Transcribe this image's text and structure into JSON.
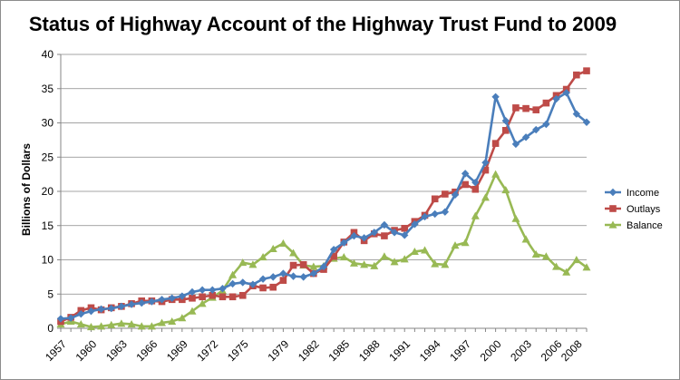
{
  "chart_data": {
    "type": "line",
    "title": "Status of Highway Account of the Highway Trust Fund to 2009",
    "xlabel": "",
    "ylabel": "Billions of Dollars",
    "ylim": [
      0,
      40
    ],
    "yticks": [
      0,
      5,
      10,
      15,
      20,
      25,
      30,
      35,
      40
    ],
    "xlim": [
      1957,
      2009
    ],
    "xtick_labels": [
      "1957",
      "1960",
      "1963",
      "1966",
      "1969",
      "1972",
      "1975",
      "1979",
      "1982",
      "1985",
      "1988",
      "1991",
      "1994",
      "1997",
      "2000",
      "2003",
      "2006",
      "2008"
    ],
    "grid": {
      "horizontal": true,
      "vertical": false
    },
    "legend": "right",
    "x": [
      1957,
      1958,
      1959,
      1960,
      1961,
      1962,
      1963,
      1964,
      1965,
      1966,
      1967,
      1968,
      1969,
      1970,
      1971,
      1972,
      1973,
      1974,
      1975,
      1976,
      1977,
      1978,
      1979,
      1980,
      1981,
      1982,
      1983,
      1984,
      1985,
      1986,
      1987,
      1988,
      1989,
      1990,
      1991,
      1992,
      1993,
      1994,
      1995,
      1996,
      1997,
      1998,
      1999,
      2000,
      2001,
      2002,
      2003,
      2004,
      2005,
      2006,
      2007,
      2008,
      2009
    ],
    "series": [
      {
        "name": "Income",
        "color": "#4a7ebb",
        "marker": "diamond",
        "values": [
          1.4,
          1.5,
          2.1,
          2.5,
          2.8,
          2.9,
          3.2,
          3.5,
          3.7,
          3.9,
          4.2,
          4.4,
          4.7,
          5.3,
          5.6,
          5.6,
          5.8,
          6.5,
          6.7,
          6.4,
          7.2,
          7.5,
          8.0,
          7.6,
          7.5,
          8.0,
          9.0,
          11.5,
          12.5,
          13.5,
          13.2,
          14.0,
          15.1,
          14.0,
          13.6,
          15.2,
          16.3,
          16.7,
          17.0,
          19.5,
          22.6,
          21.3,
          24.2,
          33.8,
          30.3,
          26.9,
          27.9,
          29.0,
          29.8,
          33.5,
          34.4,
          31.3,
          30.1
        ]
      },
      {
        "name": "Outlays",
        "color": "#be4b48",
        "marker": "square",
        "values": [
          1.0,
          1.6,
          2.6,
          3.0,
          2.7,
          3.0,
          3.2,
          3.6,
          4.0,
          4.0,
          3.9,
          4.2,
          4.2,
          4.4,
          4.6,
          4.8,
          4.6,
          4.6,
          4.8,
          6.2,
          5.9,
          6.0,
          7.0,
          9.2,
          9.3,
          8.0,
          8.6,
          10.5,
          12.6,
          14.0,
          12.8,
          13.8,
          13.5,
          14.3,
          14.6,
          15.6,
          16.5,
          18.9,
          19.6,
          19.9,
          21.0,
          20.3,
          23.1,
          27.0,
          28.9,
          32.2,
          32.1,
          31.9,
          32.9,
          34.0,
          34.9,
          37.0,
          37.6
        ]
      },
      {
        "name": "Balance",
        "color": "#98b954",
        "marker": "triangle",
        "values": [
          0.6,
          1.0,
          0.6,
          0.2,
          0.3,
          0.5,
          0.7,
          0.6,
          0.3,
          0.3,
          0.8,
          1.0,
          1.5,
          2.5,
          3.6,
          4.5,
          5.5,
          7.8,
          9.6,
          9.3,
          10.4,
          11.6,
          12.4,
          11.0,
          9.2,
          9.0,
          9.1,
          10.2,
          10.4,
          9.5,
          9.3,
          9.1,
          10.5,
          9.7,
          10.1,
          11.2,
          11.4,
          9.4,
          9.3,
          12.1,
          12.5,
          16.4,
          19.1,
          22.5,
          20.2,
          16.0,
          13.0,
          10.8,
          10.5,
          9.0,
          8.2,
          10.0,
          8.9
        ]
      }
    ]
  }
}
